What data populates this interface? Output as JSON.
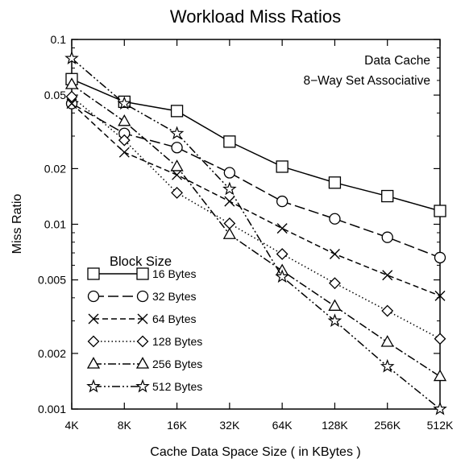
{
  "chart_data": {
    "type": "line",
    "title": "Workload Miss Ratios",
    "annotation": [
      "Data Cache",
      "8−Way Set Associative"
    ],
    "xlabel": "Cache Data Space Size ( in KBytes )",
    "ylabel": "Miss Ratio",
    "x_scale": "log2",
    "y_scale": "log",
    "categories": [
      "4K",
      "8K",
      "16K",
      "32K",
      "64K",
      "128K",
      "256K",
      "512K"
    ],
    "yticks": [
      0.001,
      0.002,
      0.005,
      0.01,
      0.02,
      0.05,
      0.1
    ],
    "ytick_labels": [
      "0.001",
      "0.002",
      "0.005",
      "0.01",
      "0.02",
      "0.05",
      "0.1"
    ],
    "ylim": [
      0.001,
      0.1
    ],
    "grid": false,
    "legend_title": "Block Size",
    "legend_position": "lower-left",
    "series": [
      {
        "name": "16 Bytes",
        "marker": "square",
        "dash": "solid",
        "values": [
          0.061,
          0.046,
          0.041,
          0.028,
          0.0205,
          0.0168,
          0.0142,
          0.0118
        ]
      },
      {
        "name": "32 Bytes",
        "marker": "circle",
        "dash": "long-dash",
        "values": [
          0.045,
          0.031,
          0.026,
          0.019,
          0.0133,
          0.0107,
          0.0085,
          0.0066
        ]
      },
      {
        "name": "64 Bytes",
        "marker": "x",
        "dash": "short-dash",
        "values": [
          0.045,
          0.0245,
          0.0185,
          0.0133,
          0.0095,
          0.0069,
          0.0053,
          0.0041
        ]
      },
      {
        "name": "128 Bytes",
        "marker": "diamond",
        "dash": "dotted",
        "values": [
          0.049,
          0.0285,
          0.0148,
          0.0101,
          0.0069,
          0.0048,
          0.0034,
          0.0024
        ]
      },
      {
        "name": "256 Bytes",
        "marker": "triangle",
        "dash": "dash-dot",
        "values": [
          0.057,
          0.036,
          0.0205,
          0.0088,
          0.0056,
          0.0036,
          0.0023,
          0.0015
        ]
      },
      {
        "name": "512 Bytes",
        "marker": "star",
        "dash": "dash-dot-dot",
        "values": [
          0.079,
          0.045,
          0.031,
          0.0155,
          0.0052,
          0.003,
          0.0017,
          0.001
        ]
      }
    ]
  }
}
